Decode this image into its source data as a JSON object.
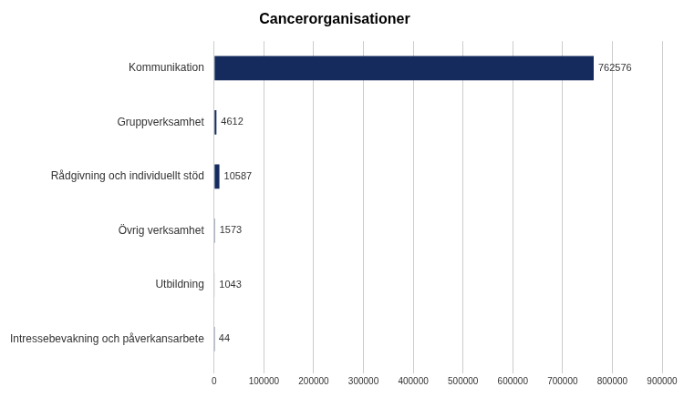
{
  "chart_data": {
    "type": "bar",
    "orientation": "horizontal",
    "title": "Cancerorganisationer",
    "categories": [
      "Kommunikation",
      "Gruppverksamhet",
      "Rådgivning och individuellt stöd",
      "Övrig verksamhet",
      "Utbildning",
      "Intressebevakning och påverkansarbete"
    ],
    "values": [
      762576,
      4612,
      10587,
      1573,
      1043,
      44
    ],
    "color": "#152B5E",
    "xlim": [
      0,
      900000
    ],
    "xticks": [
      0,
      100000,
      200000,
      300000,
      400000,
      500000,
      600000,
      700000,
      800000,
      900000
    ],
    "grid": true,
    "data_labels": true
  }
}
